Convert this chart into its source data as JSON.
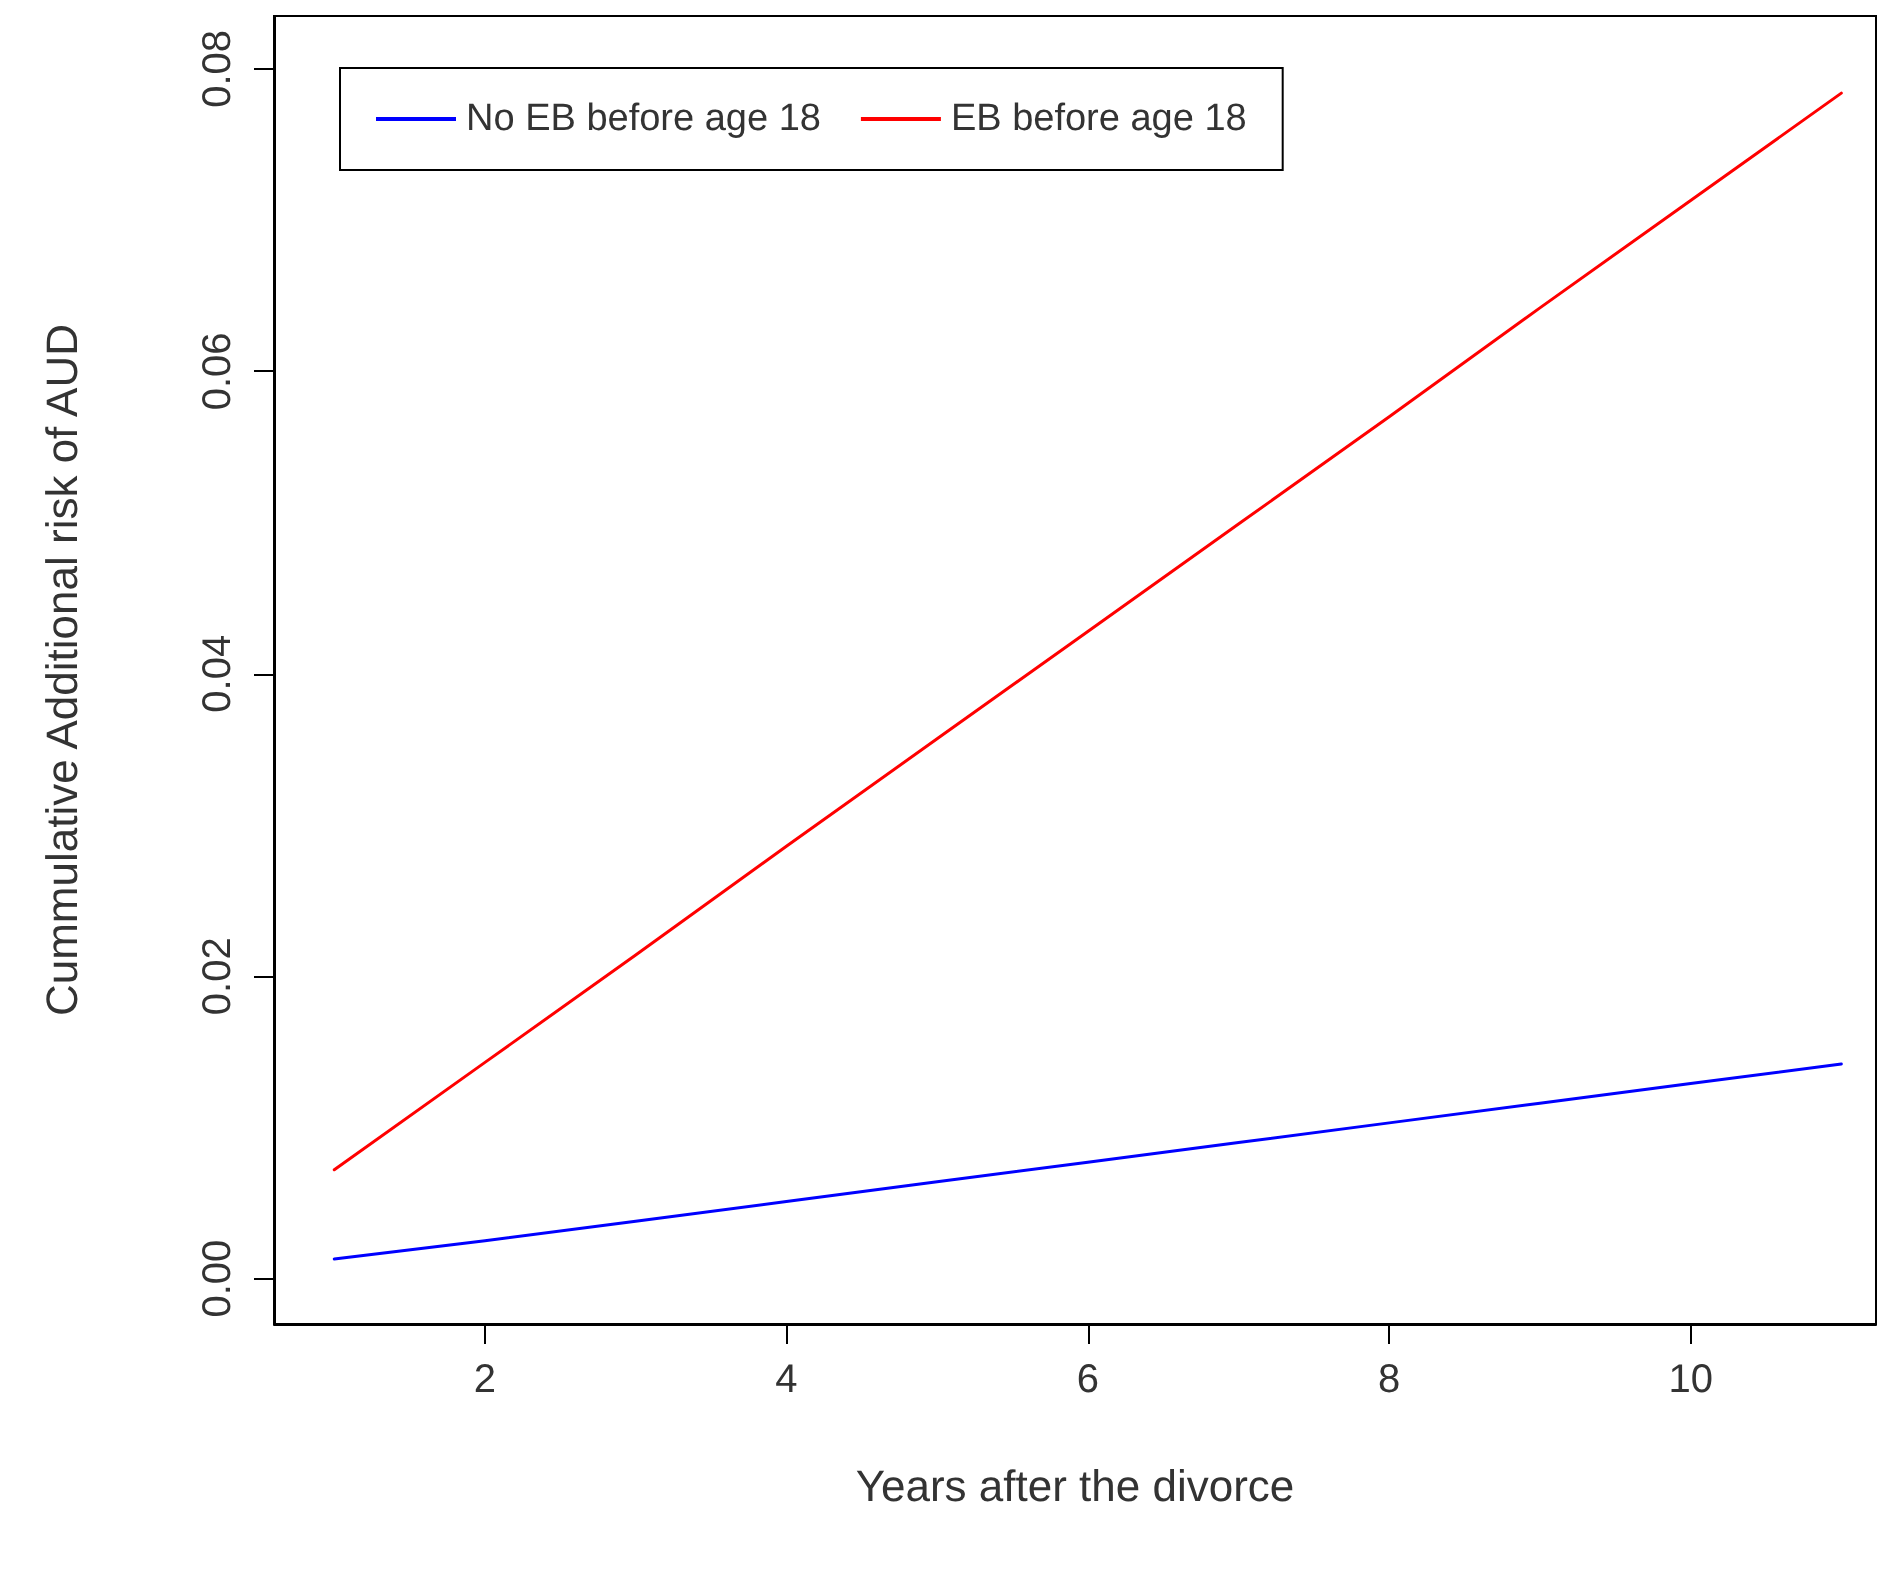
{
  "chart_data": {
    "type": "line",
    "xlabel": "Years after the divorce",
    "ylabel": "Cummulative Additional risk of AUD",
    "x": [
      1,
      2,
      3,
      4,
      5,
      6,
      7,
      8,
      9,
      10,
      11
    ],
    "series": [
      {
        "name": "No EB before age 18",
        "color": "#0000ff",
        "values": [
          0.0013,
          0.0025,
          0.0038,
          0.0051,
          0.0064,
          0.0077,
          0.009,
          0.0103,
          0.0116,
          0.0129,
          0.0142
        ]
      },
      {
        "name": "EB before age 18",
        "color": "#ff0000",
        "values": [
          0.0072,
          0.0143,
          0.0214,
          0.0286,
          0.0357,
          0.0428,
          0.0499,
          0.057,
          0.0642,
          0.0713,
          0.0784
        ]
      }
    ],
    "xlim": [
      0.6,
      11.23
    ],
    "xticks": [
      2,
      4,
      6,
      8,
      10
    ],
    "ylim": [
      -0.003,
      0.0835
    ],
    "yticks": [
      {
        "value": 0,
        "label": "0.00"
      },
      {
        "value": 0.02,
        "label": "0.02"
      },
      {
        "value": 0.04,
        "label": "0.04"
      },
      {
        "value": 0.06,
        "label": "0.06"
      },
      {
        "value": 0.08,
        "label": "0.08"
      }
    ],
    "legend": "top left",
    "grid": false,
    "marker": "none",
    "line_style": "solid"
  }
}
